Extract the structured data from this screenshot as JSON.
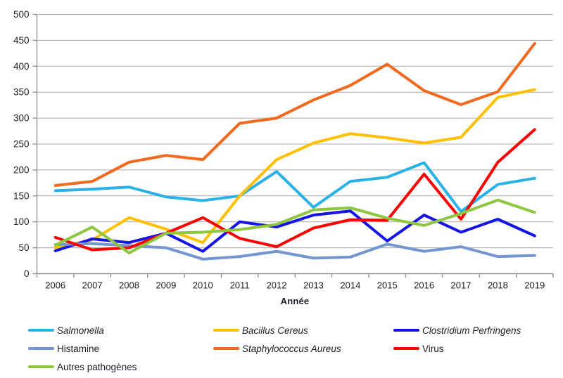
{
  "chart_data": {
    "type": "line",
    "title": "",
    "xlabel": "Année",
    "ylabel": "",
    "x": [
      2006,
      2007,
      2008,
      2009,
      2010,
      2011,
      2012,
      2013,
      2014,
      2015,
      2016,
      2017,
      2018,
      2019
    ],
    "ylim": [
      0,
      500
    ],
    "ytick_step": 50,
    "grid": true,
    "legend_position": "bottom",
    "series": [
      {
        "name": "Salmonella",
        "italic": true,
        "color": "#29B2E8",
        "values": [
          160,
          163,
          167,
          148,
          141,
          150,
          197,
          128,
          178,
          186,
          214,
          120,
          172,
          184
        ]
      },
      {
        "name": "Bacillus Cereus",
        "italic": true,
        "color": "#FFC000",
        "values": [
          50,
          65,
          108,
          86,
          60,
          150,
          220,
          252,
          270,
          262,
          252,
          263,
          340,
          355
        ]
      },
      {
        "name": "Clostridium Perfringens",
        "italic": true,
        "color": "#1414E6",
        "values": [
          44,
          67,
          60,
          78,
          43,
          100,
          90,
          113,
          121,
          63,
          113,
          80,
          105,
          73
        ]
      },
      {
        "name": "Histamine",
        "italic": false,
        "color": "#7396D1",
        "values": [
          56,
          58,
          54,
          50,
          28,
          33,
          43,
          30,
          32,
          57,
          43,
          52,
          33,
          35
        ]
      },
      {
        "name": "Staphylococcus Aureus",
        "italic": true,
        "color": "#F4691E",
        "values": [
          170,
          178,
          215,
          228,
          220,
          290,
          300,
          335,
          363,
          404,
          353,
          326,
          351,
          444
        ]
      },
      {
        "name": "Virus",
        "italic": false,
        "color": "#FE0000",
        "values": [
          70,
          46,
          50,
          78,
          108,
          68,
          52,
          88,
          104,
          103,
          192,
          105,
          215,
          278
        ]
      },
      {
        "name": "Autres pathogènes",
        "italic": false,
        "color": "#8DC63F",
        "values": [
          55,
          90,
          40,
          78,
          80,
          85,
          95,
          123,
          127,
          107,
          93,
          116,
          142,
          118
        ]
      }
    ]
  },
  "colors": {
    "gridline": "#ACACAC",
    "axis": "#8C8C8C",
    "tick_text": "#1d1d26"
  }
}
